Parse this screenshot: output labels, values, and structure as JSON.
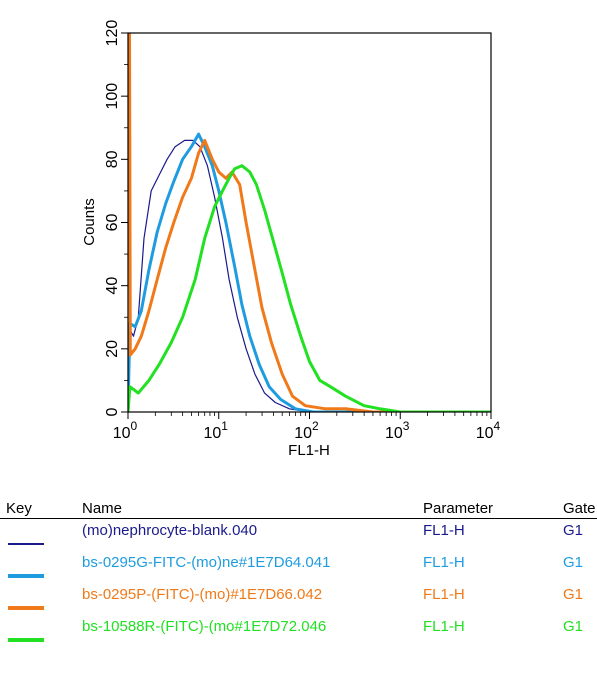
{
  "chart_data": {
    "type": "line",
    "xlabel": "FL1-H",
    "ylabel": "Counts",
    "xscale": "log",
    "xlim": [
      1,
      10000
    ],
    "ylim": [
      0,
      120
    ],
    "xticks": [
      {
        "base": "10",
        "exp": "0",
        "value": 1
      },
      {
        "base": "10",
        "exp": "1",
        "value": 10
      },
      {
        "base": "10",
        "exp": "2",
        "value": 100
      },
      {
        "base": "10",
        "exp": "3",
        "value": 1000
      },
      {
        "base": "10",
        "exp": "4",
        "value": 10000
      }
    ],
    "yticks": [
      "0",
      "20",
      "40",
      "60",
      "80",
      "100",
      "120"
    ],
    "series": [
      {
        "name": "(mo)nephrocyte-blank.040",
        "color": "#1a1a8c",
        "parameter": "FL1-H",
        "gate": "G1",
        "points": [
          [
            1,
            0
          ],
          [
            1.05,
            26
          ],
          [
            1.15,
            24
          ],
          [
            1.3,
            30
          ],
          [
            1.5,
            55
          ],
          [
            1.8,
            70
          ],
          [
            2.2,
            75
          ],
          [
            2.7,
            80
          ],
          [
            3.3,
            84
          ],
          [
            4.2,
            86
          ],
          [
            5.2,
            86
          ],
          [
            6.2,
            84
          ],
          [
            7.5,
            78
          ],
          [
            9,
            68
          ],
          [
            11,
            55
          ],
          [
            13,
            42
          ],
          [
            16,
            30
          ],
          [
            20,
            20
          ],
          [
            25,
            12
          ],
          [
            32,
            6
          ],
          [
            42,
            3
          ],
          [
            60,
            1
          ],
          [
            100,
            0
          ],
          [
            10000,
            0
          ]
        ]
      },
      {
        "name": "bs-0295G-FITC-(mo)ne#1E7D64.041",
        "color": "#1f9ce0",
        "parameter": "FL1-H",
        "gate": "G1",
        "points": [
          [
            1,
            0
          ],
          [
            1.05,
            28
          ],
          [
            1.2,
            27
          ],
          [
            1.4,
            32
          ],
          [
            1.7,
            45
          ],
          [
            2.1,
            57
          ],
          [
            2.6,
            66
          ],
          [
            3.2,
            73
          ],
          [
            4,
            80
          ],
          [
            5,
            84
          ],
          [
            6,
            88
          ],
          [
            7,
            84
          ],
          [
            8.5,
            78
          ],
          [
            10,
            70
          ],
          [
            12,
            60
          ],
          [
            15,
            46
          ],
          [
            18,
            34
          ],
          [
            22,
            24
          ],
          [
            28,
            15
          ],
          [
            36,
            8
          ],
          [
            48,
            4
          ],
          [
            70,
            1
          ],
          [
            110,
            0
          ],
          [
            10000,
            0
          ]
        ]
      },
      {
        "name": "bs-0295P-(FITC)-(mo)#1E7D66.042",
        "color": "#f07a1a",
        "parameter": "FL1-H",
        "gate": "G1",
        "points": [
          [
            1,
            120
          ],
          [
            1.04,
            120
          ],
          [
            1.06,
            18
          ],
          [
            1.2,
            20
          ],
          [
            1.4,
            24
          ],
          [
            1.7,
            32
          ],
          [
            2.1,
            42
          ],
          [
            2.6,
            52
          ],
          [
            3.2,
            60
          ],
          [
            4,
            68
          ],
          [
            5,
            74
          ],
          [
            6,
            82
          ],
          [
            7,
            86
          ],
          [
            8.5,
            80
          ],
          [
            10,
            76
          ],
          [
            12,
            74
          ],
          [
            14,
            76
          ],
          [
            17,
            72
          ],
          [
            20,
            60
          ],
          [
            25,
            45
          ],
          [
            30,
            33
          ],
          [
            38,
            22
          ],
          [
            50,
            12
          ],
          [
            65,
            5
          ],
          [
            90,
            2
          ],
          [
            150,
            1
          ],
          [
            250,
            1
          ],
          [
            500,
            0
          ],
          [
            10000,
            0
          ]
        ]
      },
      {
        "name": "bs-10588R-(FITC)-(mo#1E7D72.046",
        "color": "#22e022",
        "parameter": "FL1-H",
        "gate": "G1",
        "points": [
          [
            1,
            0
          ],
          [
            1.05,
            8
          ],
          [
            1.3,
            6
          ],
          [
            1.7,
            10
          ],
          [
            2.2,
            15
          ],
          [
            3,
            22
          ],
          [
            4,
            30
          ],
          [
            5.5,
            42
          ],
          [
            7,
            55
          ],
          [
            9,
            65
          ],
          [
            11,
            70
          ],
          [
            13,
            74
          ],
          [
            15,
            77
          ],
          [
            18,
            78
          ],
          [
            22,
            76
          ],
          [
            26,
            72
          ],
          [
            32,
            64
          ],
          [
            40,
            54
          ],
          [
            50,
            44
          ],
          [
            62,
            34
          ],
          [
            80,
            24
          ],
          [
            100,
            16
          ],
          [
            130,
            10
          ],
          [
            170,
            8
          ],
          [
            250,
            5
          ],
          [
            400,
            2
          ],
          [
            600,
            1
          ],
          [
            1000,
            0
          ],
          [
            10000,
            0
          ]
        ]
      }
    ]
  },
  "key_table": {
    "headers": {
      "key": "Key",
      "name": "Name",
      "parameter": "Parameter",
      "gate": "Gate"
    }
  }
}
